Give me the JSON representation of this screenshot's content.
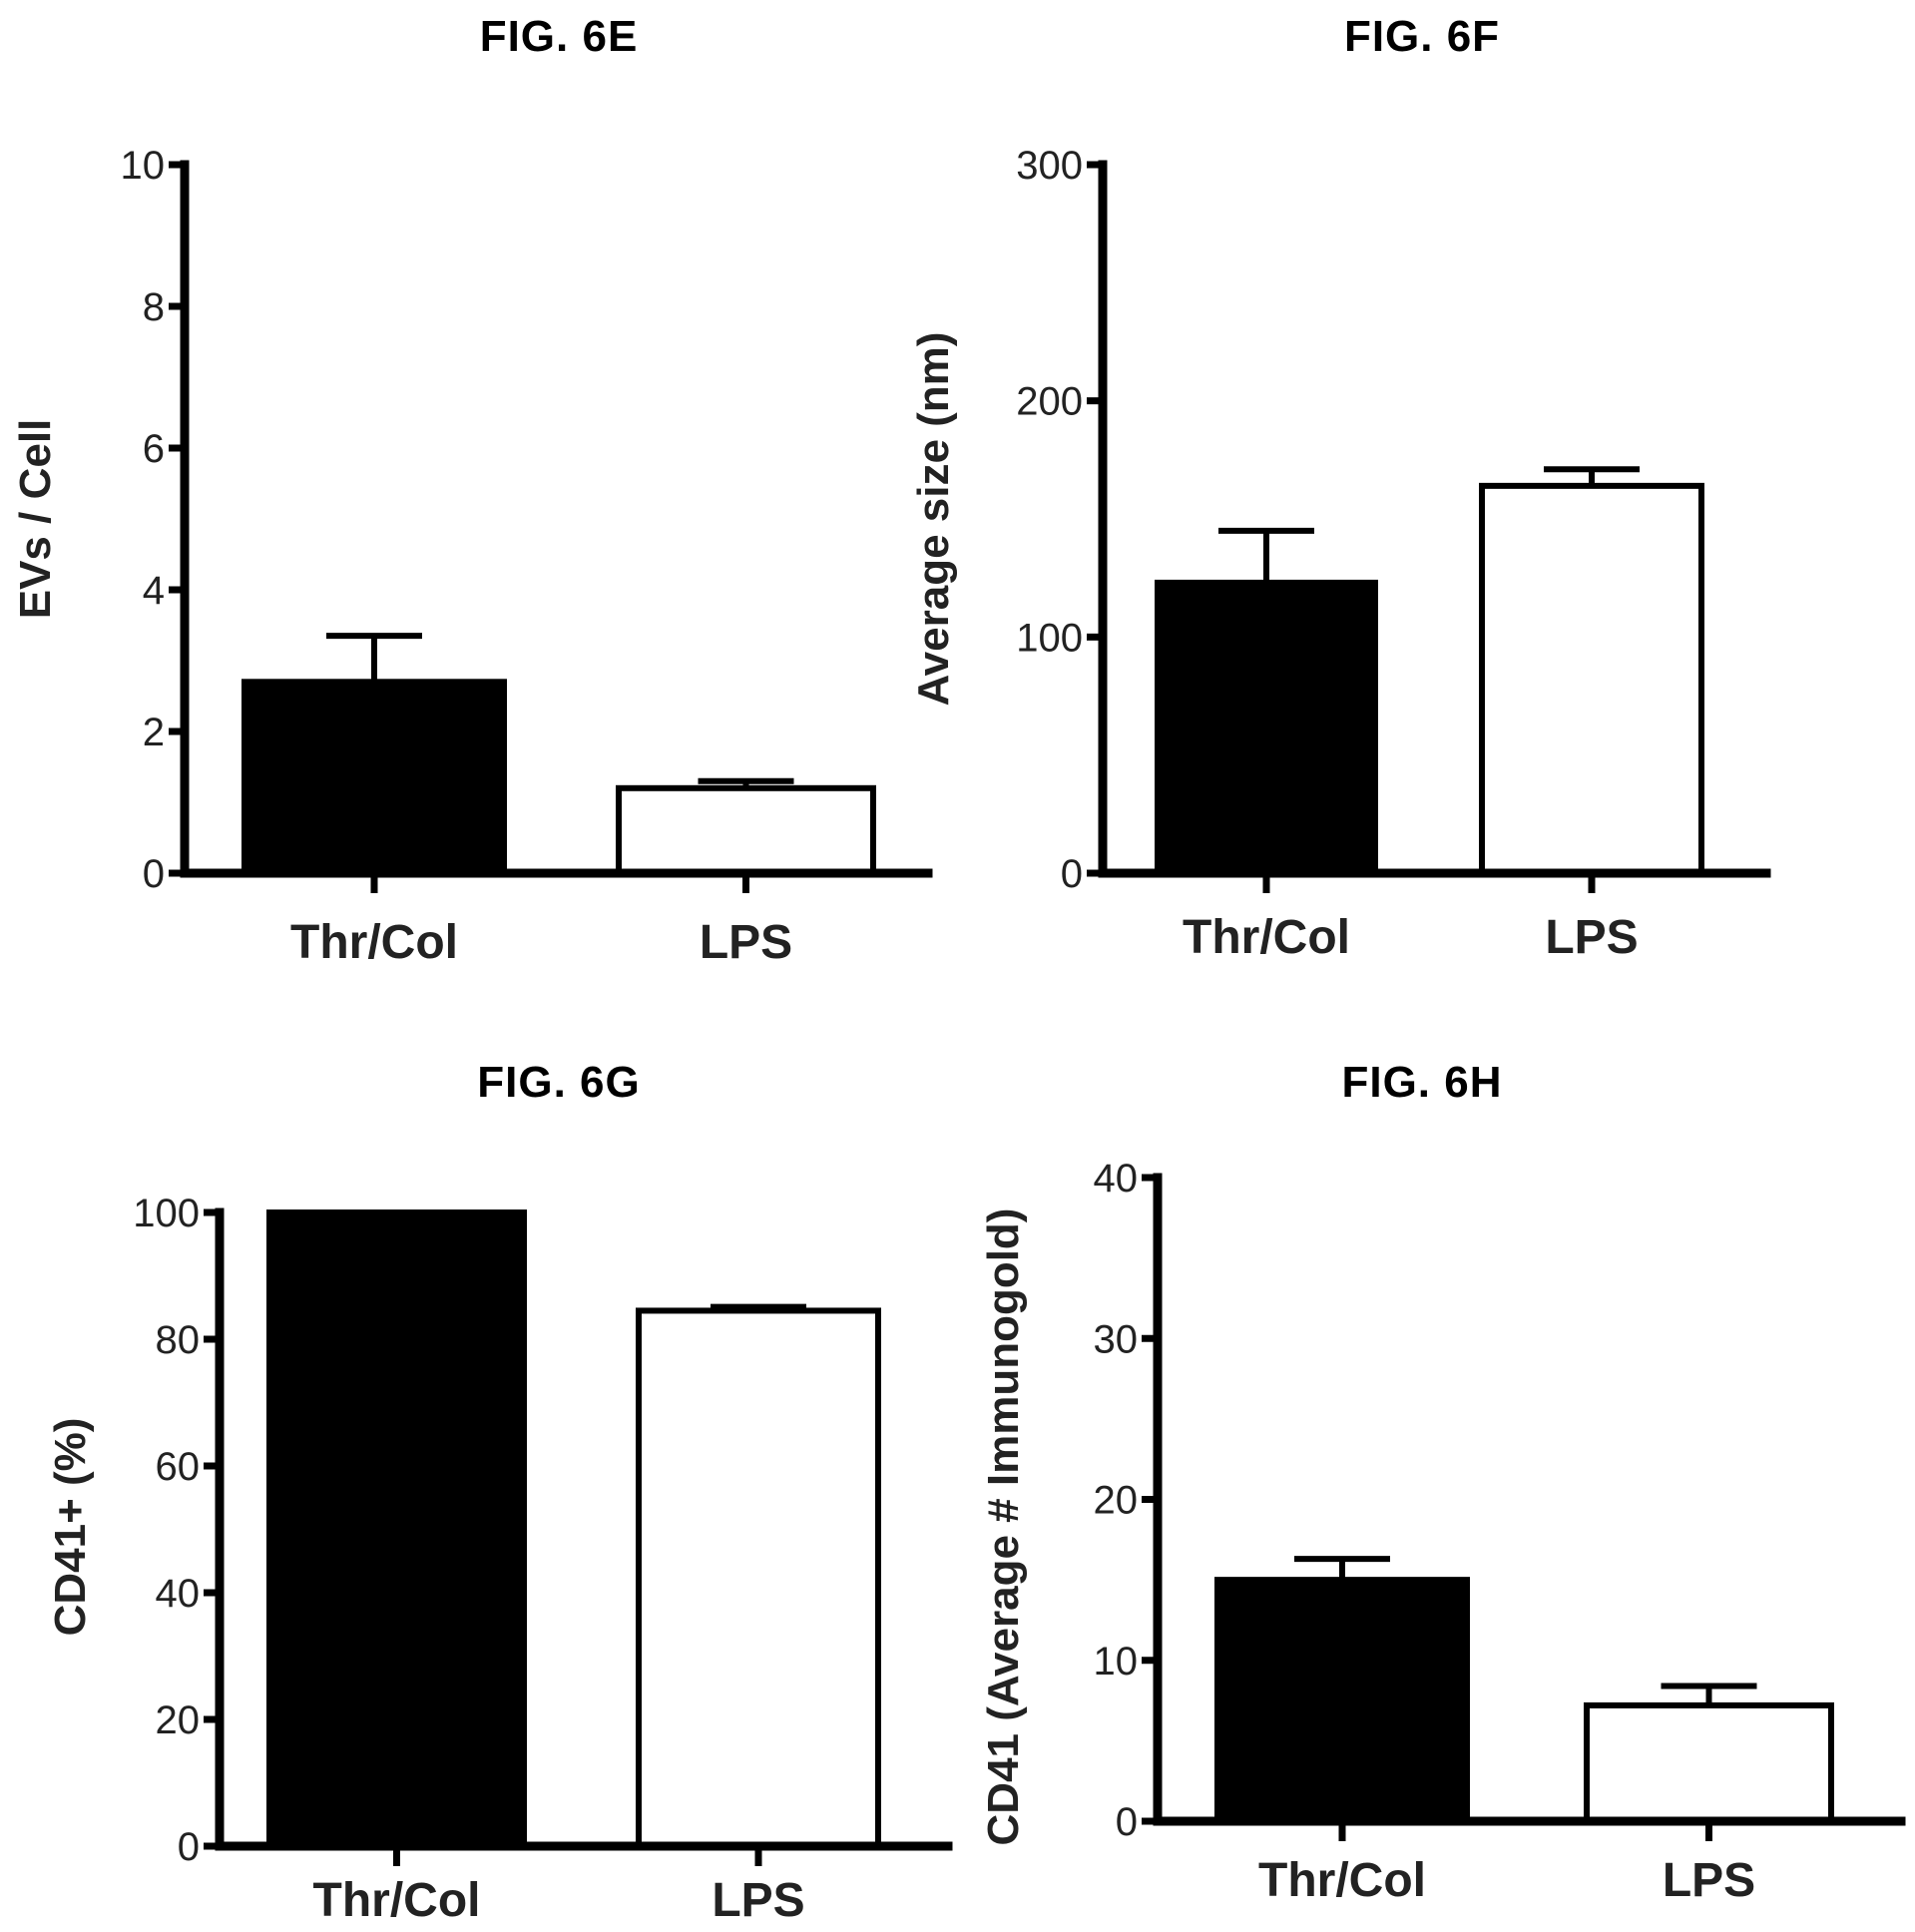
{
  "chart_data": [
    {
      "id": "fig6e",
      "type": "bar",
      "title": "FIG. 6E",
      "ylabel": "EVs / Cell",
      "xlabel": "",
      "categories": [
        "Thr/Col",
        "LPS"
      ],
      "values": [
        2.7,
        1.2
      ],
      "errors": [
        0.65,
        0.1
      ],
      "bar_styles": [
        "filled",
        "open"
      ],
      "ylim": [
        0,
        10
      ],
      "yticks": [
        0,
        2,
        4,
        6,
        8,
        10
      ]
    },
    {
      "id": "fig6f",
      "type": "bar",
      "title": "FIG. 6F",
      "ylabel": "Average size (nm)",
      "xlabel": "",
      "categories": [
        "Thr/Col",
        "LPS"
      ],
      "values": [
        123,
        164
      ],
      "errors": [
        22,
        7
      ],
      "bar_styles": [
        "filled",
        "open"
      ],
      "ylim": [
        0,
        300
      ],
      "yticks": [
        0,
        100,
        200,
        300
      ]
    },
    {
      "id": "fig6g",
      "type": "bar",
      "title": "FIG. 6G",
      "ylabel": "CD41+ (%)",
      "xlabel": "",
      "categories": [
        "Thr/Col",
        "LPS"
      ],
      "values": [
        100,
        84.5
      ],
      "errors": [
        0,
        0.6
      ],
      "bar_styles": [
        "filled",
        "open"
      ],
      "ylim": [
        0,
        100
      ],
      "yticks": [
        0,
        20,
        40,
        60,
        80,
        100
      ]
    },
    {
      "id": "fig6h",
      "type": "bar",
      "title": "FIG. 6H",
      "ylabel": "CD41 (Average # Immunogold)",
      "xlabel": "",
      "categories": [
        "Thr/Col",
        "LPS"
      ],
      "values": [
        15,
        7.2
      ],
      "errors": [
        1.3,
        1.2
      ],
      "bar_styles": [
        "filled",
        "open"
      ],
      "ylim": [
        0,
        40
      ],
      "yticks": [
        0,
        10,
        20,
        30,
        40
      ]
    }
  ]
}
